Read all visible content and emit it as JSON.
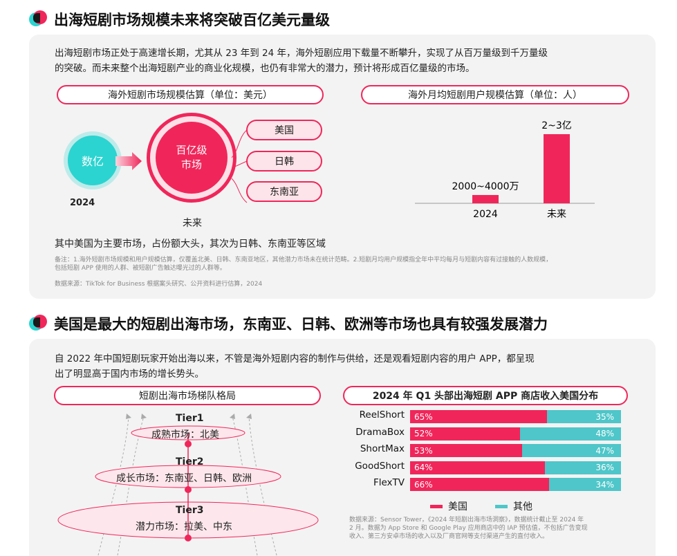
{
  "section1": {
    "title": "出海短剧市场规模未来将突破百亿美元量级",
    "paragraph_line1": "出海短剧市场正处于高速增长期，尤其从 23 年到 24 年，海外短剧应用下载量不断攀升，实现了从百万量级到千万量级",
    "paragraph_line2": "的突破。而未来整个出海短剧产业的商业化规模，也仍有非常大的潜力，预计将形成百亿量级的市场。",
    "market_size": {
      "title": "海外短剧市场规模估算（单位：美元）",
      "current_label": "数亿",
      "current_year": "2024",
      "future_label_line1": "百亿级",
      "future_label_line2": "市场",
      "future_year": "未来",
      "regions": [
        "美国",
        "日韩",
        "东南亚"
      ]
    },
    "user_size": {
      "title": "海外月均短剧用户规模估算（单位：人）",
      "chart_data": {
        "type": "bar",
        "categories": [
          "2024",
          "未来"
        ],
        "value_labels": [
          "2000~4000万",
          "2~3亿"
        ],
        "values": [
          30000000,
          250000000
        ]
      }
    },
    "summary": "其中美国为主要市场，占份额大头，其次为日韩、东南亚等区域",
    "note_line1": "备注：1.海外短剧市场规模和用户规模估算，仅覆盖北美、日韩、东南亚地区，其他潜力市场未在统计范畴。2.短剧月均用户规模指全年中平均每月与短剧内容有过接触的人数规模，",
    "note_line2": "包括短剧 APP 使用的人群、被短剧广告触达曝光过的人群等。",
    "source": "数据来源：TikTok for Business 根据案头研究、公开资料进行估算，2024"
  },
  "section2": {
    "title": "美国是最大的短剧出海市场，东南亚、日韩、欧洲等市场也具有较强发展潜力",
    "paragraph_line1": "自 2022 年中国短剧玩家开始出海以来，不管是海外短剧内容的制作与供给，还是观看短剧内容的用户 APP，都呈现",
    "paragraph_line2": "出了明显高于国内市场的增长势头。",
    "tiers": {
      "title": "短剧出海市场梯队格局",
      "items": [
        {
          "name": "Tier1",
          "desc": "成熟市场：北美"
        },
        {
          "name": "Tier2",
          "desc": "成长市场：东南亚、日韩、欧洲"
        },
        {
          "name": "Tier3",
          "desc": "潜力市场：拉美、中东"
        }
      ]
    },
    "revenue": {
      "title": "2024 年 Q1 头部出海短剧 APP 商店收入美国分布",
      "legend_us": "美国",
      "legend_other": "其他",
      "colors": {
        "us": "#f0265a",
        "other": "#4fc6c9"
      },
      "chart_data": {
        "type": "bar",
        "stacked": true,
        "orientation": "horizontal",
        "categories": [
          "ReelShort",
          "DramaBox",
          "ShortMax",
          "GoodShort",
          "FlexTV"
        ],
        "series": [
          {
            "name": "美国",
            "values": [
              65,
              52,
              53,
              64,
              66
            ],
            "labels": [
              "65%",
              "52%",
              "53%",
              "64%",
              "66%"
            ]
          },
          {
            "name": "其他",
            "values": [
              35,
              48,
              47,
              36,
              34
            ],
            "labels": [
              "35%",
              "48%",
              "47%",
              "36%",
              "34%"
            ]
          }
        ]
      },
      "source_line1": "数据来源：Sensor Tower，《2024 年短剧出海市场洞察》，数据统计截止至 2024 年",
      "source_line2": "2 月。数据为 App Store 和 Google Play 应用商店中的 IAP 预估值，不包括广告变现",
      "source_line3": "收入、第三方安卓市场的收入以及厂商官网等支付渠道产生的直付收入。"
    }
  }
}
